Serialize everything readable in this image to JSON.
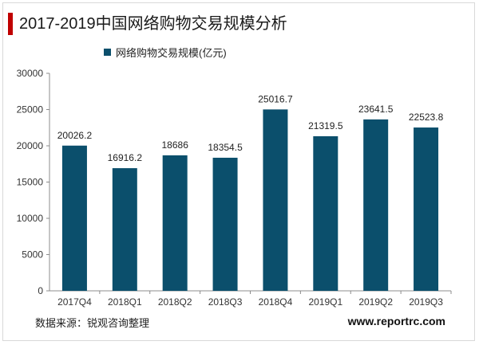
{
  "title": "2017-2019中国网络购物交易规模分析",
  "source": "数据来源：锐观咨询整理",
  "website": "www.reportrc.com",
  "colors": {
    "bar": "#0b4f6c",
    "accent": "#c00000"
  },
  "chart_data": {
    "type": "bar",
    "title": "2017-2019中国网络购物交易规模分析",
    "categories": [
      "2017Q4",
      "2018Q1",
      "2018Q2",
      "2018Q3",
      "2018Q4",
      "2019Q1",
      "2019Q2",
      "2019Q3"
    ],
    "series": [
      {
        "name": "网络购物交易规模(亿元)",
        "values": [
          20026.2,
          16916.2,
          18686,
          18354.5,
          25016.7,
          21319.5,
          23641.5,
          22523.8
        ],
        "labels": [
          "20026.2",
          "16916.2",
          "18686",
          "18354.5",
          "25016.7",
          "21319.5",
          "23641.5",
          "22523.8"
        ]
      }
    ],
    "ylim": [
      0,
      30000
    ],
    "yticks": [
      "0",
      "5000",
      "10000",
      "15000",
      "20000",
      "25000",
      "30000"
    ],
    "legend": "top-left",
    "grid": false
  }
}
